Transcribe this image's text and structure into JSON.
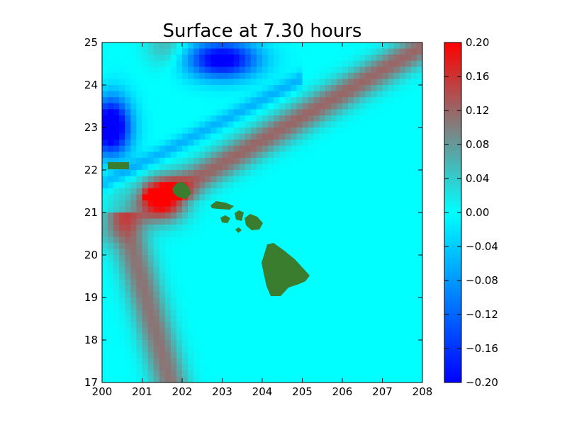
{
  "chart_data": {
    "type": "heatmap",
    "title": "Surface at 7.30 hours",
    "xlabel": "",
    "ylabel": "",
    "xlim": [
      200,
      208
    ],
    "ylim": [
      17,
      25
    ],
    "x_ticks": [
      "200",
      "201",
      "202",
      "203",
      "204",
      "205",
      "206",
      "207",
      "208"
    ],
    "y_ticks": [
      "17",
      "18",
      "19",
      "20",
      "21",
      "22",
      "23",
      "24",
      "25"
    ],
    "colorbar": {
      "min": -0.2,
      "max": 0.2,
      "ticks": [
        "0.20",
        "0.16",
        "0.12",
        "0.08",
        "0.04",
        "0.00",
        "−0.04",
        "−0.08",
        "−0.12",
        "−0.16",
        "−0.20"
      ],
      "colors": {
        "low": "#0000ff",
        "mid_low": "#00ffff",
        "mid_high": "#808080",
        "high": "#ff0000"
      }
    },
    "land_color": "#3a7d2f",
    "features": [
      {
        "name": "positive anomaly",
        "center": [
          201.5,
          21.3
        ],
        "value": 0.2
      },
      {
        "name": "negative anomaly",
        "center": [
          200.3,
          22.9
        ],
        "value": -0.2
      },
      {
        "name": "negative anomaly",
        "center": [
          203.0,
          24.5
        ],
        "value": -0.15
      }
    ]
  }
}
